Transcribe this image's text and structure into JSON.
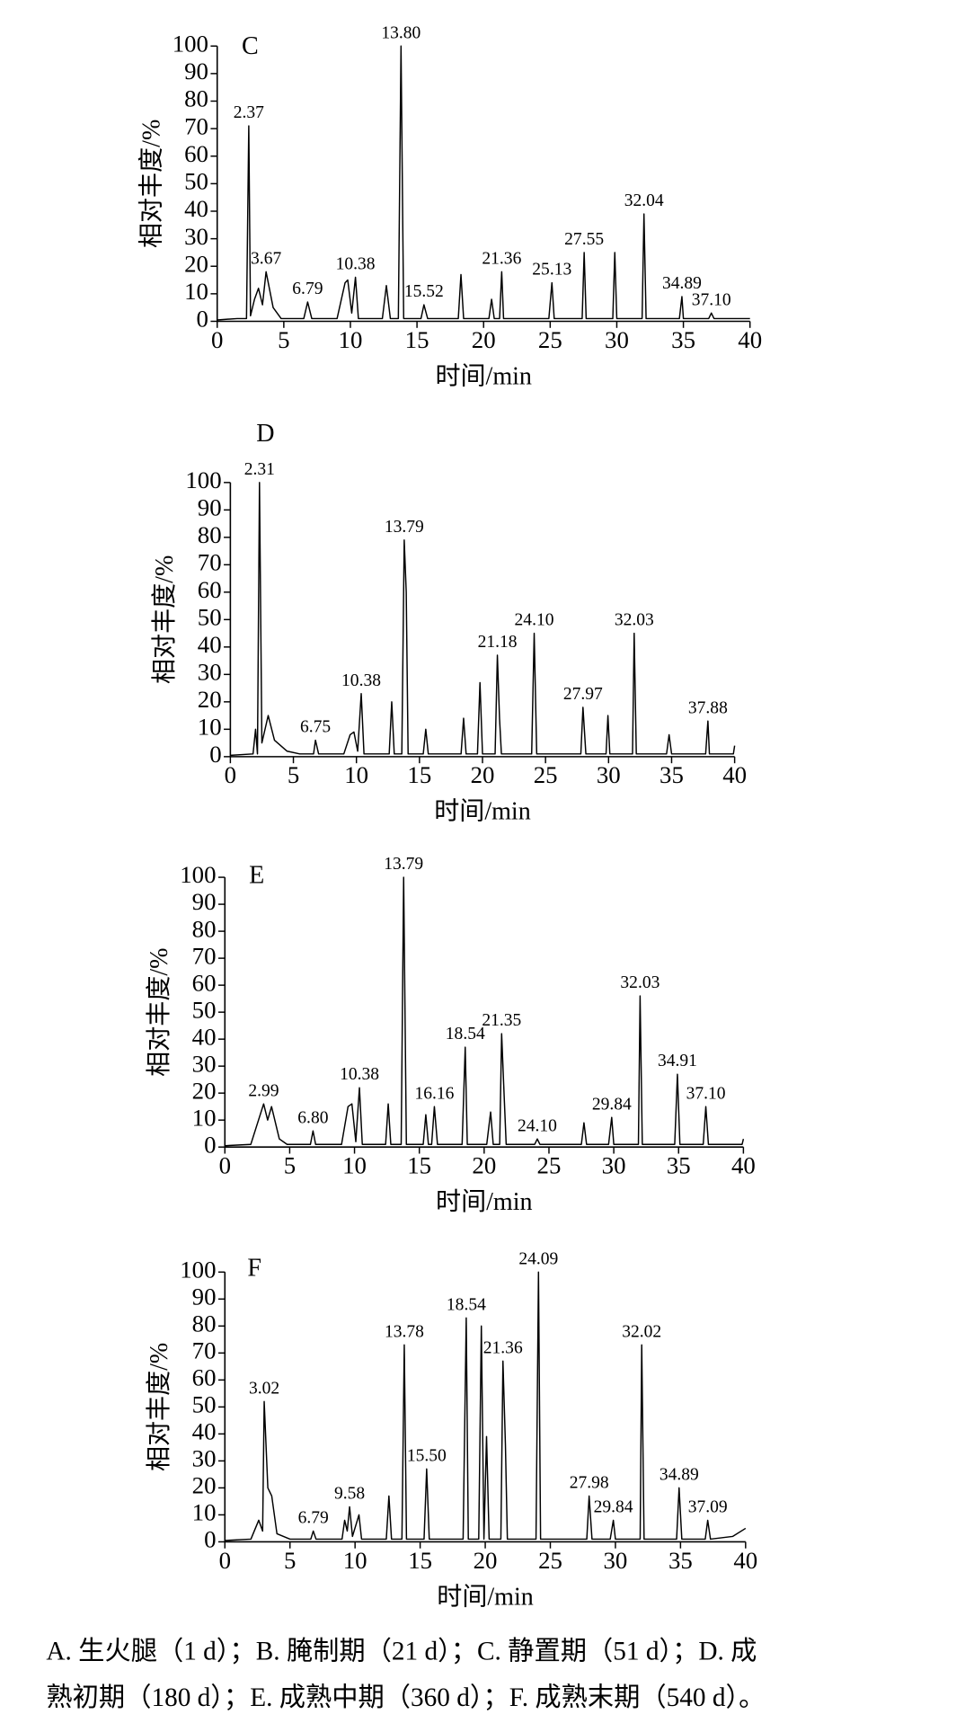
{
  "chart_data": [
    {
      "type": "line",
      "title": "C",
      "x_label": "时间/min",
      "y_label": "相对丰度/%",
      "color": "#000000",
      "xlim": [
        0,
        40
      ],
      "xticks": [
        0,
        5,
        10,
        15,
        20,
        25,
        30,
        35,
        40
      ],
      "ylim": [
        0,
        100
      ],
      "yticks": [
        0,
        10,
        20,
        30,
        40,
        50,
        60,
        70,
        80,
        90,
        100
      ],
      "x": [
        0,
        1.5,
        2.2,
        2.37,
        2.5,
        2.8,
        3.1,
        3.4,
        3.67,
        4.2,
        4.8,
        6.5,
        6.79,
        7.1,
        9.0,
        9.6,
        9.8,
        10.1,
        10.38,
        10.6,
        12.4,
        12.7,
        13.0,
        13.6,
        13.8,
        14.0,
        15.3,
        15.52,
        15.8,
        18.1,
        18.3,
        18.5,
        20.4,
        20.6,
        20.8,
        21.2,
        21.36,
        21.5,
        24.9,
        25.13,
        25.3,
        27.4,
        27.55,
        27.7,
        29.7,
        29.85,
        30.0,
        31.9,
        32.04,
        32.2,
        34.7,
        34.89,
        35.0,
        36.9,
        37.1,
        37.3,
        40
      ],
      "values": [
        0.5,
        1,
        1,
        71,
        2,
        8,
        12,
        6,
        18,
        5,
        1,
        1,
        7,
        1,
        1,
        14,
        15,
        3,
        16,
        1,
        1,
        13,
        1,
        1,
        100,
        1,
        1,
        6,
        1,
        1,
        17,
        1,
        1,
        8,
        1,
        1,
        18,
        1,
        1,
        14,
        1,
        1,
        25,
        1,
        1,
        25,
        1,
        1,
        39,
        1,
        1,
        9,
        1,
        1,
        3,
        1,
        1
      ],
      "annotations": [
        {
          "value": 2.37,
          "label": "2.37"
        },
        {
          "value": 3.67,
          "label": "3.67"
        },
        {
          "value": 6.79,
          "label": "6.79"
        },
        {
          "value": 10.38,
          "label": "10.38"
        },
        {
          "value": 13.8,
          "label": "13.80"
        },
        {
          "value": 15.52,
          "label": "15.52"
        },
        {
          "value": 21.36,
          "label": "21.36"
        },
        {
          "value": 25.13,
          "label": "25.13"
        },
        {
          "value": 27.55,
          "label": "27.55"
        },
        {
          "value": 32.04,
          "label": "32.04"
        },
        {
          "value": 34.89,
          "label": "34.89"
        },
        {
          "value": 37.1,
          "label": "37.10"
        }
      ]
    },
    {
      "type": "line",
      "title": "D",
      "x_label": "时间/min",
      "y_label": "相对丰度/%",
      "color": "#000000",
      "xlim": [
        0,
        40
      ],
      "xticks": [
        0,
        5,
        10,
        15,
        20,
        25,
        30,
        35,
        40
      ],
      "ylim": [
        0,
        100
      ],
      "yticks": [
        0,
        10,
        20,
        30,
        40,
        50,
        60,
        70,
        80,
        90,
        100
      ],
      "x": [
        0,
        1.8,
        2.0,
        2.15,
        2.31,
        2.5,
        3.0,
        3.5,
        4.5,
        5.5,
        6.6,
        6.75,
        7.0,
        9.0,
        9.5,
        9.8,
        10.1,
        10.38,
        10.6,
        12.6,
        12.8,
        13.0,
        13.6,
        13.79,
        13.95,
        14.1,
        15.3,
        15.5,
        15.7,
        18.3,
        18.5,
        18.7,
        19.6,
        19.8,
        20.0,
        21.0,
        21.18,
        21.35,
        21.5,
        23.9,
        24.1,
        24.3,
        27.8,
        27.97,
        28.2,
        29.8,
        29.95,
        30.1,
        31.9,
        32.03,
        32.2,
        34.6,
        34.8,
        35.0,
        37.7,
        37.88,
        38.0,
        39.9,
        40
      ],
      "values": [
        0.5,
        1,
        10,
        1,
        100,
        5,
        15,
        6,
        2,
        1,
        1,
        6,
        1,
        1,
        8,
        9,
        2,
        23,
        1,
        1,
        20,
        1,
        1,
        79,
        60,
        1,
        1,
        10,
        1,
        1,
        14,
        1,
        1,
        27,
        1,
        1,
        37,
        14,
        1,
        1,
        45,
        1,
        1,
        18,
        1,
        1,
        15,
        1,
        1,
        45,
        1,
        1,
        8,
        1,
        1,
        13,
        1,
        1,
        4
      ],
      "annotations": [
        {
          "value": 2.31,
          "label": "2.31"
        },
        {
          "value": 6.75,
          "label": "6.75"
        },
        {
          "value": 10.38,
          "label": "10.38"
        },
        {
          "value": 13.79,
          "label": "13.79"
        },
        {
          "value": 21.18,
          "label": "21.18"
        },
        {
          "value": 24.1,
          "label": "24.10"
        },
        {
          "value": 27.97,
          "label": "27.97"
        },
        {
          "value": 32.03,
          "label": "32.03"
        },
        {
          "value": 37.88,
          "label": "37.88"
        }
      ]
    },
    {
      "type": "line",
      "title": "E",
      "x_label": "时间/min",
      "y_label": "相对丰度/%",
      "color": "#000000",
      "xlim": [
        0,
        40
      ],
      "xticks": [
        0,
        5,
        10,
        15,
        20,
        25,
        30,
        35,
        40
      ],
      "ylim": [
        0,
        100
      ],
      "yticks": [
        0,
        10,
        20,
        30,
        40,
        50,
        60,
        70,
        80,
        90,
        100
      ],
      "x": [
        0,
        2.0,
        2.99,
        3.3,
        3.6,
        4.2,
        4.8,
        6.6,
        6.8,
        7.0,
        9.0,
        9.5,
        9.8,
        10.1,
        10.38,
        10.6,
        12.4,
        12.6,
        12.8,
        13.6,
        13.79,
        14.0,
        15.3,
        15.5,
        15.7,
        15.95,
        16.16,
        16.4,
        18.3,
        18.54,
        18.7,
        20.2,
        20.5,
        20.7,
        21.2,
        21.35,
        21.5,
        21.7,
        23.9,
        24.1,
        24.3,
        27.5,
        27.7,
        27.9,
        29.6,
        29.84,
        30.0,
        31.9,
        32.03,
        32.2,
        34.7,
        34.91,
        35.1,
        36.9,
        37.1,
        37.3,
        39.9,
        40
      ],
      "values": [
        0.5,
        1,
        16,
        10,
        15,
        3,
        1,
        1,
        6,
        1,
        1,
        15,
        16,
        2,
        22,
        1,
        1,
        16,
        1,
        1,
        100,
        1,
        1,
        12,
        1,
        1,
        15,
        1,
        1,
        37,
        1,
        1,
        13,
        1,
        1,
        42,
        24,
        1,
        1,
        3,
        1,
        1,
        9,
        1,
        1,
        11,
        1,
        1,
        56,
        1,
        1,
        27,
        1,
        1,
        15,
        1,
        1,
        3
      ],
      "annotations": [
        {
          "value": 2.99,
          "label": "2.99"
        },
        {
          "value": 6.8,
          "label": "6.80"
        },
        {
          "value": 10.38,
          "label": "10.38"
        },
        {
          "value": 13.79,
          "label": "13.79"
        },
        {
          "value": 16.16,
          "label": "16.16"
        },
        {
          "value": 18.54,
          "label": "18.54"
        },
        {
          "value": 21.35,
          "label": "21.35"
        },
        {
          "value": 24.1,
          "label": "24.10"
        },
        {
          "value": 29.84,
          "label": "29.84"
        },
        {
          "value": 32.03,
          "label": "32.03"
        },
        {
          "value": 34.91,
          "label": "34.91"
        },
        {
          "value": 37.1,
          "label": "37.10"
        }
      ]
    },
    {
      "type": "line",
      "title": "F",
      "x_label": "时间/min",
      "y_label": "相对丰度/%",
      "color": "#000000",
      "xlim": [
        0,
        40
      ],
      "xticks": [
        0,
        5,
        10,
        15,
        20,
        25,
        30,
        35,
        40
      ],
      "ylim": [
        0,
        100
      ],
      "yticks": [
        0,
        10,
        20,
        30,
        40,
        50,
        60,
        70,
        80,
        90,
        100
      ],
      "x": [
        0,
        2.0,
        2.6,
        2.9,
        3.02,
        3.3,
        3.6,
        4.0,
        5.0,
        6.6,
        6.79,
        7.0,
        9.0,
        9.2,
        9.4,
        9.58,
        9.8,
        10.3,
        10.5,
        12.4,
        12.6,
        12.8,
        13.6,
        13.78,
        13.95,
        15.3,
        15.5,
        15.7,
        18.3,
        18.54,
        18.7,
        19.5,
        19.7,
        19.9,
        20.1,
        20.3,
        21.2,
        21.36,
        21.55,
        21.7,
        23.9,
        24.09,
        24.25,
        27.8,
        27.98,
        28.2,
        29.6,
        29.84,
        30.0,
        31.9,
        32.02,
        32.2,
        34.7,
        34.89,
        35.1,
        36.9,
        37.09,
        37.3,
        39.0,
        40
      ],
      "values": [
        0.5,
        1,
        8,
        4,
        52,
        20,
        17,
        3,
        1,
        1,
        4,
        1,
        1,
        8,
        4,
        13,
        2,
        10,
        1,
        1,
        17,
        1,
        1,
        73,
        1,
        1,
        27,
        1,
        1,
        83,
        1,
        1,
        80,
        1,
        39,
        1,
        1,
        67,
        36,
        1,
        1,
        100,
        1,
        1,
        17,
        1,
        1,
        8,
        1,
        1,
        73,
        1,
        1,
        20,
        1,
        1,
        8,
        1,
        2,
        5
      ],
      "annotations": [
        {
          "value": 3.02,
          "label": "3.02"
        },
        {
          "value": 6.79,
          "label": "6.79"
        },
        {
          "value": 9.58,
          "label": "9.58"
        },
        {
          "value": 13.78,
          "label": "13.78"
        },
        {
          "value": 15.5,
          "label": "15.50"
        },
        {
          "value": 18.54,
          "label": "18.54"
        },
        {
          "value": 21.36,
          "label": "21.36"
        },
        {
          "value": 24.09,
          "label": "24.09"
        },
        {
          "value": 27.98,
          "label": "27.98"
        },
        {
          "value": 29.84,
          "label": "29.84"
        },
        {
          "value": 32.02,
          "label": "32.02"
        },
        {
          "value": 34.89,
          "label": "34.89"
        },
        {
          "value": 37.09,
          "label": "37.09"
        }
      ]
    }
  ],
  "caption": [
    "A. 生火腿（1 d）；B. 腌制期（21 d）；C. 静置期（51 d）；D. 成",
    "熟初期（180 d）；E. 成熟中期（360 d）；F. 成熟末期（540 d）。"
  ]
}
